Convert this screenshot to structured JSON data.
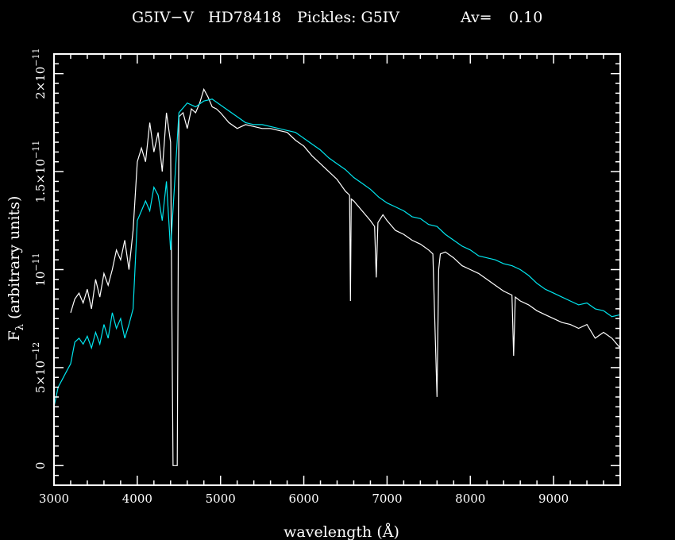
{
  "chart_data": {
    "type": "line",
    "title_parts": [
      "G5IV−V",
      "HD78418",
      "Pickles: G5IV",
      "Av=",
      "0.10"
    ],
    "xlabel": "wavelength (Å)",
    "ylabel_main": "F",
    "ylabel_sub": "λ",
    "ylabel_rest": " (arbitrary units)",
    "xlim": [
      3000,
      9800
    ],
    "ylim": [
      -1e-12,
      2.1e-11
    ],
    "x_ticks": [
      3000,
      4000,
      5000,
      6000,
      7000,
      8000,
      9000
    ],
    "x_tick_labels": [
      "3000",
      "4000",
      "5000",
      "6000",
      "7000",
      "8000",
      "9000"
    ],
    "y_ticks": [
      0,
      5e-12,
      1e-11,
      1.5e-11,
      2e-11
    ],
    "y_tick_labels": [
      {
        "main": "0",
        "exp": ""
      },
      {
        "main": "5×10",
        "exp": "−12"
      },
      {
        "main": "10",
        "exp": "−11"
      },
      {
        "main": "1.5×10",
        "exp": "−11"
      },
      {
        "main": "2×10",
        "exp": "−11"
      }
    ],
    "series": [
      {
        "color": "#ffffff",
        "x": [
          3200,
          3250,
          3300,
          3350,
          3400,
          3450,
          3500,
          3550,
          3600,
          3650,
          3700,
          3750,
          3800,
          3850,
          3900,
          3950,
          4000,
          4050,
          4100,
          4150,
          4200,
          4250,
          4300,
          4350,
          4400,
          4430,
          4440,
          4470,
          4480,
          4500,
          4550,
          4600,
          4650,
          4700,
          4750,
          4800,
          4850,
          4900,
          4950,
          5000,
          5100,
          5200,
          5300,
          5400,
          5500,
          5600,
          5700,
          5800,
          5900,
          6000,
          6100,
          6200,
          6300,
          6400,
          6500,
          6550,
          6560,
          6570,
          6600,
          6700,
          6800,
          6850,
          6870,
          6890,
          6950,
          7000,
          7100,
          7200,
          7300,
          7400,
          7500,
          7550,
          7600,
          7620,
          7640,
          7700,
          7800,
          7900,
          8000,
          8100,
          8200,
          8300,
          8400,
          8500,
          8520,
          8540,
          8600,
          8700,
          8800,
          8900,
          9000,
          9100,
          9200,
          9300,
          9400,
          9500,
          9600,
          9700,
          9800
        ],
        "y": [
          7.8e-12,
          8.5e-12,
          8.8e-12,
          8.3e-12,
          9e-12,
          8e-12,
          9.5e-12,
          8.6e-12,
          9.8e-12,
          9.2e-12,
          1e-11,
          1.1e-11,
          1.05e-11,
          1.15e-11,
          1e-11,
          1.2e-11,
          1.55e-11,
          1.62e-11,
          1.55e-11,
          1.75e-11,
          1.6e-11,
          1.7e-11,
          1.5e-11,
          1.8e-11,
          1.65e-11,
          0,
          0,
          0,
          0,
          1.78e-11,
          1.8e-11,
          1.72e-11,
          1.82e-11,
          1.8e-11,
          1.85e-11,
          1.92e-11,
          1.88e-11,
          1.83e-11,
          1.82e-11,
          1.8e-11,
          1.75e-11,
          1.72e-11,
          1.74e-11,
          1.73e-11,
          1.72e-11,
          1.72e-11,
          1.71e-11,
          1.7e-11,
          1.66e-11,
          1.63e-11,
          1.58e-11,
          1.54e-11,
          1.5e-11,
          1.46e-11,
          1.4e-11,
          1.38e-11,
          8.4e-12,
          1.36e-11,
          1.35e-11,
          1.3e-11,
          1.25e-11,
          1.22e-11,
          9.6e-12,
          1.24e-11,
          1.28e-11,
          1.25e-11,
          1.2e-11,
          1.18e-11,
          1.15e-11,
          1.13e-11,
          1.1e-11,
          1.08e-11,
          3.5e-12,
          1e-11,
          1.08e-11,
          1.09e-11,
          1.06e-11,
          1.02e-11,
          1e-11,
          9.8e-12,
          9.5e-12,
          9.2e-12,
          8.9e-12,
          8.7e-12,
          5.6e-12,
          8.6e-12,
          8.4e-12,
          8.2e-12,
          7.9e-12,
          7.7e-12,
          7.5e-12,
          7.3e-12,
          7.2e-12,
          7e-12,
          7.2e-12,
          6.5e-12,
          6.8e-12,
          6.5e-12,
          6e-12
        ]
      },
      {
        "color": "#00e5ee",
        "x": [
          3000,
          3050,
          3100,
          3150,
          3200,
          3250,
          3300,
          3350,
          3400,
          3450,
          3500,
          3550,
          3600,
          3650,
          3700,
          3750,
          3800,
          3850,
          3900,
          3950,
          4000,
          4050,
          4100,
          4150,
          4200,
          4250,
          4300,
          4350,
          4400,
          4500,
          4600,
          4700,
          4800,
          4900,
          5000,
          5100,
          5200,
          5300,
          5400,
          5500,
          5600,
          5700,
          5800,
          5900,
          6000,
          6100,
          6200,
          6300,
          6400,
          6500,
          6600,
          6700,
          6800,
          6900,
          7000,
          7100,
          7200,
          7300,
          7400,
          7500,
          7600,
          7700,
          7800,
          7900,
          8000,
          8100,
          8200,
          8300,
          8400,
          8500,
          8600,
          8700,
          8800,
          8900,
          9000,
          9100,
          9200,
          9300,
          9400,
          9500,
          9600,
          9700,
          9800
        ],
        "y": [
          3e-12,
          4e-12,
          4.4e-12,
          4.8e-12,
          5.2e-12,
          6.3e-12,
          6.5e-12,
          6.2e-12,
          6.6e-12,
          6e-12,
          6.8e-12,
          6.2e-12,
          7.2e-12,
          6.5e-12,
          7.8e-12,
          7e-12,
          7.5e-12,
          6.5e-12,
          7.2e-12,
          8e-12,
          1.25e-11,
          1.3e-11,
          1.35e-11,
          1.3e-11,
          1.42e-11,
          1.38e-11,
          1.25e-11,
          1.45e-11,
          1.1e-11,
          1.8e-11,
          1.85e-11,
          1.83e-11,
          1.86e-11,
          1.87e-11,
          1.84e-11,
          1.81e-11,
          1.78e-11,
          1.75e-11,
          1.74e-11,
          1.74e-11,
          1.73e-11,
          1.72e-11,
          1.71e-11,
          1.7e-11,
          1.67e-11,
          1.64e-11,
          1.61e-11,
          1.57e-11,
          1.54e-11,
          1.51e-11,
          1.47e-11,
          1.44e-11,
          1.41e-11,
          1.37e-11,
          1.34e-11,
          1.32e-11,
          1.3e-11,
          1.27e-11,
          1.26e-11,
          1.23e-11,
          1.22e-11,
          1.18e-11,
          1.15e-11,
          1.12e-11,
          1.1e-11,
          1.07e-11,
          1.06e-11,
          1.05e-11,
          1.03e-11,
          1.02e-11,
          1e-11,
          9.7e-12,
          9.3e-12,
          9e-12,
          8.8e-12,
          8.6e-12,
          8.4e-12,
          8.2e-12,
          8.3e-12,
          8e-12,
          7.9e-12,
          7.6e-12,
          7.7e-12
        ]
      }
    ]
  }
}
